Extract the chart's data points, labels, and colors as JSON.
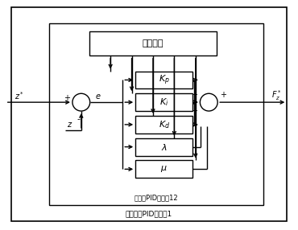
{
  "bg_color": "#ffffff",
  "aco_label": "蚁群算法",
  "pid_label": "分数阶PID控制器12",
  "outer_label": "蚁群算法PID控制器1",
  "zstar_label": "$z^*$",
  "z_label": "$z$",
  "e_label": "$e$",
  "Fz_label": "$F_z^*$",
  "Kp_label": "$K_p$",
  "Ki_label": "$K_i$",
  "Kd_label": "$K_d$",
  "lam_label": "$\\lambda$",
  "mu_label": "$\\mu$"
}
